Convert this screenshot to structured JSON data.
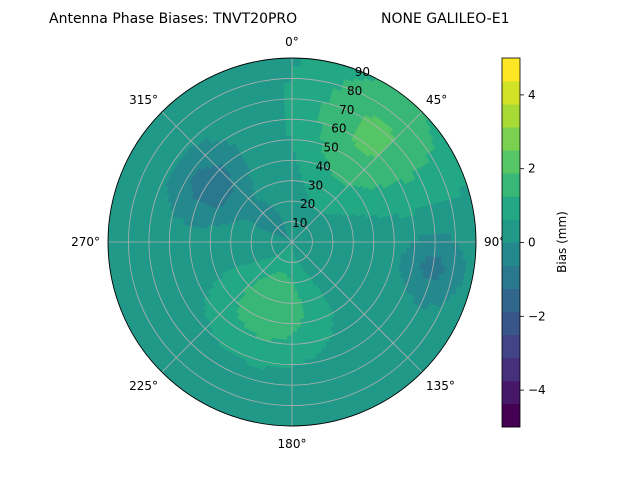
{
  "chart_data": {
    "type": "heatmap",
    "projection": "polar",
    "title": "Antenna Phase Biases: TNVT20PRO",
    "subtitle": "NONE GALILEO-E1",
    "angle_ticks": [
      "0°",
      "45°",
      "90°",
      "135°",
      "180°",
      "225°",
      "270°",
      "315°"
    ],
    "angle_tick_values": [
      0,
      45,
      90,
      135,
      180,
      225,
      270,
      315
    ],
    "radial_ticks": [
      "10",
      "20",
      "30",
      "40",
      "50",
      "60",
      "70",
      "80",
      "90"
    ],
    "radial_tick_values": [
      10,
      20,
      30,
      40,
      50,
      60,
      70,
      80,
      90
    ],
    "rlim": [
      0,
      90
    ],
    "theta_zero": "top",
    "theta_direction": "clockwise",
    "grid": true,
    "colorbar": {
      "label": "Bias (mm)",
      "range": [
        -5,
        5
      ],
      "levels": [
        -5,
        -4.375,
        -3.75,
        -3.125,
        -2.5,
        -1.875,
        -1.25,
        -0.625,
        0,
        0.625,
        1.25,
        1.875,
        2.5,
        3.125,
        3.75,
        4.375,
        5
      ],
      "tick_values": [
        -4,
        -2,
        0,
        2,
        4
      ],
      "tick_labels": [
        "−4",
        "−2",
        "0",
        "2",
        "4"
      ],
      "colormap": "viridis"
    },
    "approx_regions": [
      {
        "description": "higher bias band",
        "azimuth_range": [
          15,
          60
        ],
        "elevation_range": [
          40,
          90
        ],
        "value": 2
      },
      {
        "description": "higher bias band",
        "azimuth_range": [
          170,
          225
        ],
        "elevation_range": [
          15,
          50
        ],
        "value": 1.8
      },
      {
        "description": "lower bias patch",
        "azimuth_range": [
          290,
          320
        ],
        "elevation_range": [
          35,
          60
        ],
        "value": -1
      },
      {
        "description": "lower bias patch",
        "azimuth_range": [
          90,
          110
        ],
        "elevation_range": [
          60,
          80
        ],
        "value": -0.8
      },
      {
        "description": "lower bias patch",
        "azimuth_range": [
          300,
          330
        ],
        "elevation_range": [
          5,
          20
        ],
        "value": -0.5
      }
    ]
  }
}
